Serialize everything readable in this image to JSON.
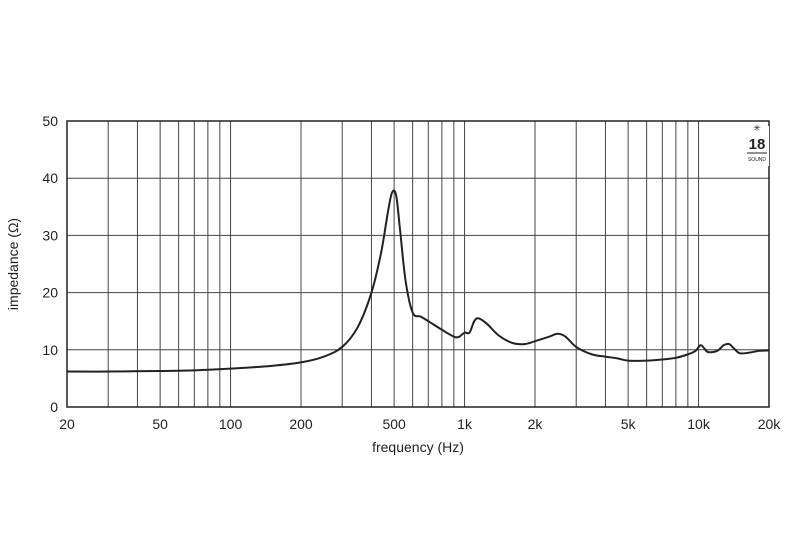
{
  "chart_data": {
    "type": "line",
    "xlabel": "frequency (Hz)",
    "ylabel": "impedance (Ω)",
    "x_scale": "log",
    "xlim": [
      20,
      20000
    ],
    "ylim": [
      0,
      50
    ],
    "grid": true,
    "x_ticks": [
      {
        "value": 20,
        "label": "20"
      },
      {
        "value": 50,
        "label": "50"
      },
      {
        "value": 100,
        "label": "100"
      },
      {
        "value": 200,
        "label": "200"
      },
      {
        "value": 500,
        "label": "500"
      },
      {
        "value": 1000,
        "label": "1k"
      },
      {
        "value": 2000,
        "label": "2k"
      },
      {
        "value": 5000,
        "label": "5k"
      },
      {
        "value": 10000,
        "label": "10k"
      },
      {
        "value": 20000,
        "label": "20k"
      }
    ],
    "y_ticks": [
      {
        "value": 0,
        "label": "0"
      },
      {
        "value": 10,
        "label": "10"
      },
      {
        "value": 20,
        "label": "20"
      },
      {
        "value": 30,
        "label": "30"
      },
      {
        "value": 40,
        "label": "40"
      },
      {
        "value": 50,
        "label": "50"
      }
    ],
    "series": [
      {
        "points": [
          [
            20,
            6.2
          ],
          [
            30,
            6.2
          ],
          [
            50,
            6.3
          ],
          [
            70,
            6.4
          ],
          [
            100,
            6.7
          ],
          [
            150,
            7.2
          ],
          [
            200,
            7.8
          ],
          [
            250,
            8.8
          ],
          [
            300,
            10.5
          ],
          [
            350,
            14.0
          ],
          [
            400,
            20.0
          ],
          [
            440,
            27.0
          ],
          [
            470,
            34.0
          ],
          [
            490,
            37.5
          ],
          [
            510,
            37.0
          ],
          [
            530,
            31.0
          ],
          [
            560,
            22.0
          ],
          [
            600,
            16.5
          ],
          [
            650,
            15.8
          ],
          [
            700,
            15.0
          ],
          [
            800,
            13.5
          ],
          [
            900,
            12.3
          ],
          [
            950,
            12.3
          ],
          [
            1000,
            13.0
          ],
          [
            1050,
            13.0
          ],
          [
            1100,
            15.0
          ],
          [
            1150,
            15.5
          ],
          [
            1250,
            14.5
          ],
          [
            1400,
            12.5
          ],
          [
            1600,
            11.2
          ],
          [
            1800,
            11.0
          ],
          [
            2000,
            11.5
          ],
          [
            2300,
            12.3
          ],
          [
            2500,
            12.8
          ],
          [
            2700,
            12.3
          ],
          [
            3000,
            10.5
          ],
          [
            3500,
            9.2
          ],
          [
            4000,
            8.8
          ],
          [
            4500,
            8.5
          ],
          [
            5000,
            8.1
          ],
          [
            6000,
            8.1
          ],
          [
            7000,
            8.3
          ],
          [
            8000,
            8.6
          ],
          [
            9000,
            9.2
          ],
          [
            9700,
            9.8
          ],
          [
            10200,
            10.8
          ],
          [
            10600,
            10.2
          ],
          [
            11000,
            9.6
          ],
          [
            12000,
            9.8
          ],
          [
            12800,
            10.8
          ],
          [
            13500,
            11.0
          ],
          [
            14200,
            10.2
          ],
          [
            15000,
            9.4
          ],
          [
            16500,
            9.5
          ],
          [
            18000,
            9.8
          ],
          [
            20000,
            9.9
          ]
        ]
      }
    ]
  },
  "logo": {
    "number": "18",
    "word": "SOUND"
  }
}
